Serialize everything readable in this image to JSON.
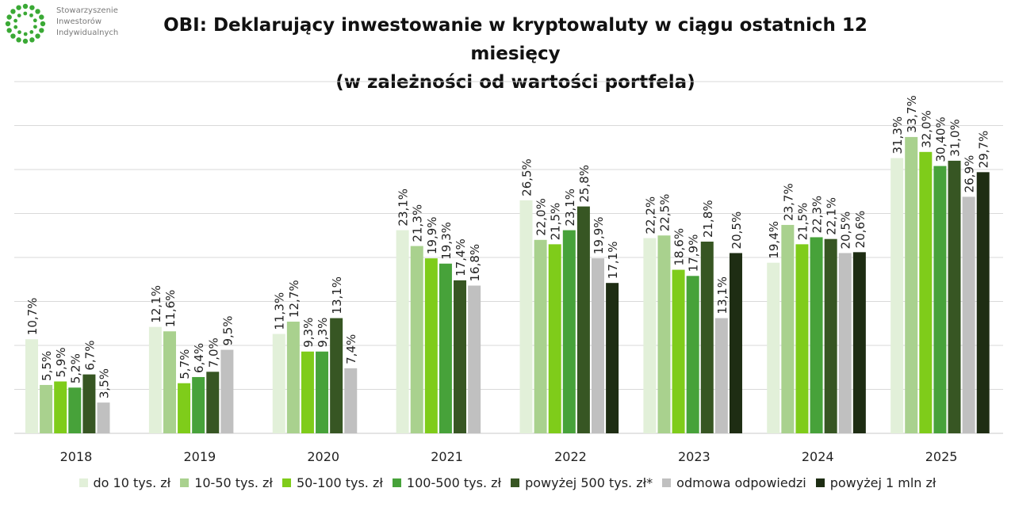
{
  "logo": {
    "lines": [
      "Stowarzyszenie",
      "Inwestorów",
      "Indywidualnych"
    ],
    "icon": "dotted-circle-logo",
    "color": "#3aa935"
  },
  "title": {
    "line1": "OBI: Deklarujący inwestowanie w kryptowaluty w ciągu ostatnich 12 miesięcy",
    "line2": "(w zależności od wartości portfela)"
  },
  "chart_data": {
    "type": "bar",
    "categories": [
      "2018",
      "2019",
      "2020",
      "2021",
      "2022",
      "2023",
      "2024",
      "2025"
    ],
    "ylim": [
      0,
      40
    ],
    "grid": true,
    "legend_position": "bottom",
    "series": [
      {
        "name": "do 10 tys. zł",
        "color": "#e2f0d9",
        "values": [
          10.7,
          12.1,
          11.3,
          23.1,
          26.5,
          22.2,
          19.4,
          31.3
        ],
        "labels": [
          "10,7%",
          "12,1%",
          "11,3%",
          "23,1%",
          "26,5%",
          "22,2%",
          "19,4%",
          "31,3%"
        ]
      },
      {
        "name": "10-50 tys. zł",
        "color": "#a9d18e",
        "values": [
          5.5,
          11.6,
          12.7,
          21.3,
          22.0,
          22.5,
          23.7,
          33.7
        ],
        "labels": [
          "5,5%",
          "11,6%",
          "12,7%",
          "21,3%",
          "22,0%",
          "22,5%",
          "23,7%",
          "33,7%"
        ]
      },
      {
        "name": "50-100 tys. zł",
        "color": "#7fcc1a",
        "values": [
          5.9,
          5.7,
          9.3,
          19.9,
          21.5,
          18.6,
          21.5,
          32.0
        ],
        "labels": [
          "5,9%",
          "5,7%",
          "9,3%",
          "19,9%",
          "21,5%",
          "18,6%",
          "21,5%",
          "32,0%"
        ]
      },
      {
        "name": "100-500 tys. zł",
        "color": "#47a23a",
        "values": [
          5.2,
          6.4,
          9.3,
          19.3,
          23.1,
          17.9,
          22.3,
          30.4
        ],
        "labels": [
          "5,2%",
          "6,4%",
          "9,3%",
          "19,3%",
          "23,1%",
          "17,9%",
          "22,3%",
          "30,40%"
        ]
      },
      {
        "name": "powyżej 500 tys. zł*",
        "color": "#375623",
        "values": [
          6.7,
          7.0,
          13.1,
          17.4,
          25.8,
          21.8,
          22.1,
          31.0
        ],
        "labels": [
          "6,7%",
          "7,0%",
          "13,1%",
          "17,4%",
          "25,8%",
          "21,8%",
          "22,1%",
          "31,0%"
        ]
      },
      {
        "name": "odmowa odpowiedzi",
        "color": "#c0c0c0",
        "values": [
          3.5,
          9.5,
          7.4,
          16.8,
          19.9,
          13.1,
          20.5,
          26.9
        ],
        "labels": [
          "3,5%",
          "9,5%",
          "7,4%",
          "16,8%",
          "19,9%",
          "13,1%",
          "20,5%",
          "26,9%"
        ]
      },
      {
        "name": "powyżej 1 mln zł",
        "color": "#1e2d13",
        "values": [
          null,
          null,
          null,
          null,
          17.1,
          20.5,
          20.6,
          29.7
        ],
        "labels": [
          null,
          null,
          null,
          null,
          "17,1%",
          "20,5%",
          "20,6%",
          "29,7%"
        ]
      }
    ]
  }
}
